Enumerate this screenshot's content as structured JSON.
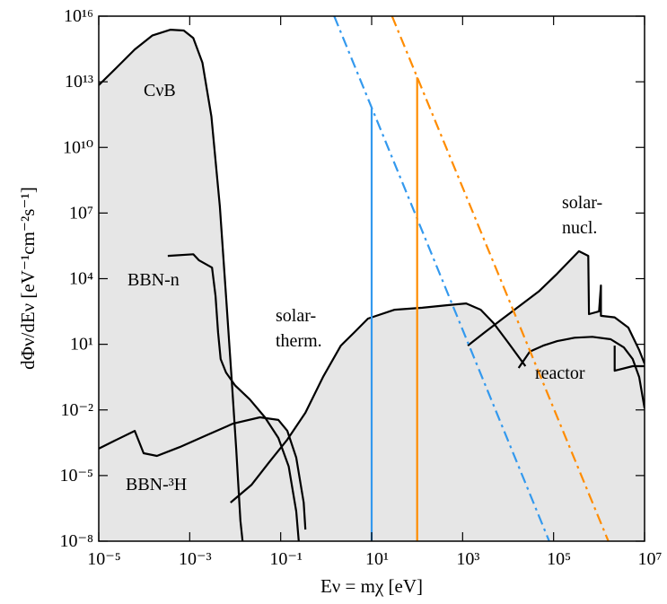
{
  "chart_data": {
    "type": "line",
    "xlabel": "Eν = mχ  [eV]",
    "ylabel": "dΦν/dEν  [eV⁻¹cm⁻²s⁻¹]",
    "xscale": "log",
    "yscale": "log",
    "xlim": [
      1e-05,
      10000000.0
    ],
    "ylim": [
      1e-08,
      1e+16
    ],
    "xticks": [
      {
        "value": 1e-05,
        "label": "10⁻⁵"
      },
      {
        "value": 0.001,
        "label": "10⁻³"
      },
      {
        "value": 0.1,
        "label": "10⁻¹"
      },
      {
        "value": 10,
        "label": "10¹"
      },
      {
        "value": 1000.0,
        "label": "10³"
      },
      {
        "value": 100000.0,
        "label": "10⁵"
      },
      {
        "value": 10000000.0,
        "label": "10⁷"
      }
    ],
    "yticks": [
      {
        "value": 1e-08,
        "label": "10⁻⁸"
      },
      {
        "value": 1e-05,
        "label": "10⁻⁵"
      },
      {
        "value": 0.01,
        "label": "10⁻²"
      },
      {
        "value": 10,
        "label": "10¹"
      },
      {
        "value": 10000.0,
        "label": "10⁴"
      },
      {
        "value": 10000000.0,
        "label": "10⁷"
      },
      {
        "value": 10000000000.0,
        "label": "10¹⁰"
      },
      {
        "value": 10000000000000.0,
        "label": "10¹³"
      },
      {
        "value": 1e+16,
        "label": "10¹⁶"
      }
    ],
    "fill_color": "#e6e6e6",
    "annotations": [
      [
        "CνB"
      ],
      [
        "BBN-n"
      ],
      [
        "BBN-³H"
      ],
      [
        "solar-",
        "therm."
      ],
      [
        "solar-",
        "nucl."
      ],
      [
        "reactor"
      ]
    ],
    "series": [
      {
        "color": "#000000",
        "style": "solid",
        "filled": true,
        "x": [
          1e-05,
          2.5e-05,
          6.2e-05,
          0.00015,
          0.00038,
          0.00074,
          0.0012,
          0.0019,
          0.003,
          0.0046,
          0.0063,
          0.0083,
          0.0105,
          0.013,
          0.0145
        ],
        "values": [
          7000000000000.0,
          46000000000000.0,
          300000000000000.0,
          1300000000000000.0,
          2400000000000000.0,
          2200000000000000.0,
          1000000000000000.0,
          74000000000000.0,
          260000000000.0,
          20000000.0,
          1600.0,
          0.32,
          0.00017,
          8.7e-08,
          1e-08
        ]
      },
      {
        "color": "#000000",
        "style": "solid",
        "filled": true,
        "x": [
          0.00033,
          0.0012,
          0.0016,
          0.0031,
          0.0037,
          0.0042,
          0.0048,
          0.0063,
          0.01,
          0.021,
          0.045,
          0.089,
          0.15,
          0.22,
          0.25
        ],
        "values": [
          110000.0,
          130000.0,
          69000.0,
          32000.0,
          1600.0,
          36,
          2.1,
          0.51,
          0.13,
          0.03,
          0.0046,
          0.00052,
          2.6e-05,
          2.3e-07,
          1e-08
        ]
      },
      {
        "color": "#000000",
        "style": "solid",
        "filled": true,
        "x": [
          1e-05,
          2.5e-05,
          6.2e-05,
          9.7e-05,
          0.00019,
          0.0006,
          0.0023,
          0.0091,
          0.035,
          0.089,
          0.14,
          0.22,
          0.32,
          0.35
        ],
        "values": [
          0.00017,
          0.00044,
          0.0011,
          0.000105,
          7.9e-05,
          0.0002,
          0.00069,
          0.0024,
          0.0046,
          0.0035,
          0.0011,
          6.6e-05,
          5.8e-07,
          3.4e-08
        ]
      },
      {
        "color": "#000000",
        "style": "solid",
        "filled": true,
        "x": [
          0.0079,
          0.023,
          0.056,
          0.14,
          0.35,
          0.85,
          2.1,
          4.2,
          8.3,
          32,
          130,
          500,
          1200.0,
          2500.0,
          4800.0,
          9500.0,
          24000.0
        ],
        "values": [
          5.8e-07,
          3.8e-06,
          4.1e-05,
          0.00044,
          0.0074,
          0.32,
          8.7,
          36,
          150,
          380,
          470,
          620,
          740,
          380,
          93,
          14,
          1.0
        ]
      },
      {
        "color": "#000000",
        "style": "solid",
        "filled": true,
        "x": [
          1300.0,
          3100.0,
          7600.0,
          19000.0,
          47000.0,
          120000.0,
          230000.0,
          360000.0,
          580000.0,
          600000.0,
          1000000.0,
          1100000.0,
          1100000.0,
          2200000.0,
          4400000.0,
          7600000.0,
          10000000.0
        ],
        "values": [
          8.7,
          36,
          150,
          620,
          2600.0,
          17000.0,
          69000.0,
          180000.0,
          110000.0,
          240,
          320,
          4900.0,
          200,
          170,
          58,
          5.5,
          1.3
        ]
      },
      {
        "color": "#000000",
        "style": "solid",
        "filled": true,
        "x": [
          17000.0,
          30000.0,
          59000.0,
          120000.0,
          290000.0,
          710000.0,
          1800000.0,
          3500000.0,
          5500000.0,
          7600000.0,
          10000000.0
        ],
        "values": [
          0.83,
          4.6,
          8.7,
          14,
          20,
          22,
          17,
          7.2,
          2.1,
          0.32,
          0.012
        ]
      },
      {
        "color": "#000000",
        "style": "solid",
        "filled": true,
        "x": [
          2200000.0,
          2200000.0,
          5500000.0,
          10000000.0
        ],
        "values": [
          8.7,
          0.62,
          1.0,
          1.0
        ]
      },
      {
        "color": "#3399ee",
        "style": "dashdot",
        "filled": false,
        "x": [
          1.5,
          80000.0
        ],
        "values": [
          1e+16,
          1e-08
        ]
      },
      {
        "color": "#ff8c00",
        "style": "dashdot",
        "filled": false,
        "x": [
          28,
          1600000.0
        ],
        "values": [
          1e+16,
          1e-08
        ]
      },
      {
        "color": "#3399ee",
        "style": "solid",
        "filled": false,
        "x": [
          10,
          10
        ],
        "values": [
          1e-08,
          600000000000.0
        ]
      },
      {
        "color": "#ff8c00",
        "style": "solid",
        "filled": false,
        "x": [
          100,
          100
        ],
        "values": [
          1e-08,
          16000000000000.0
        ]
      }
    ]
  }
}
